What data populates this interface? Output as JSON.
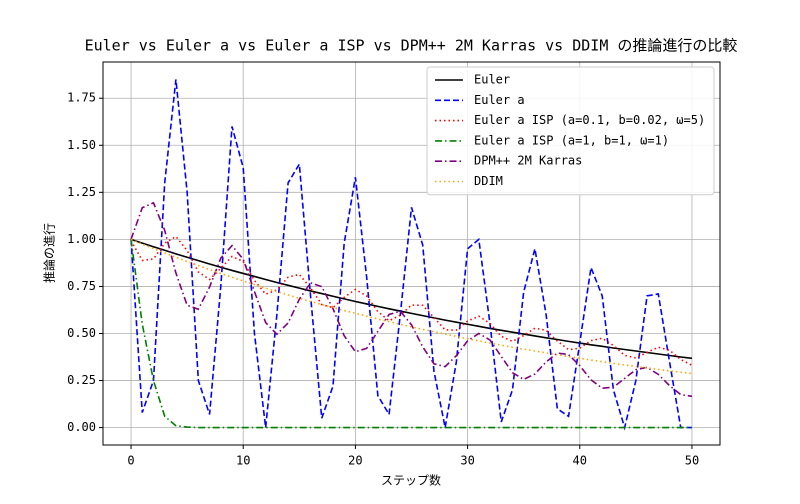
{
  "chart_data": {
    "type": "line",
    "title": "Euler vs Euler a vs Euler a ISP vs DPM++ 2M Karras vs DDIM の推論進行の比較",
    "x_label": "ステップ数",
    "y_label": "推論の進行",
    "x": [
      0,
      1,
      2,
      3,
      4,
      5,
      6,
      7,
      8,
      9,
      10,
      11,
      12,
      13,
      14,
      15,
      16,
      17,
      18,
      19,
      20,
      21,
      22,
      23,
      24,
      25,
      26,
      27,
      28,
      29,
      30,
      31,
      32,
      33,
      34,
      35,
      36,
      37,
      38,
      39,
      40,
      41,
      42,
      43,
      44,
      45,
      46,
      47,
      48,
      49,
      50
    ],
    "series": [
      {
        "name": "Euler",
        "color": "#000000",
        "linestyle": "solid",
        "values": [
          1.0,
          0.98,
          0.961,
          0.942,
          0.923,
          0.905,
          0.887,
          0.869,
          0.852,
          0.835,
          0.819,
          0.803,
          0.787,
          0.771,
          0.756,
          0.741,
          0.726,
          0.712,
          0.698,
          0.684,
          0.67,
          0.657,
          0.644,
          0.631,
          0.619,
          0.607,
          0.595,
          0.583,
          0.571,
          0.56,
          0.549,
          0.538,
          0.527,
          0.517,
          0.507,
          0.497,
          0.487,
          0.477,
          0.468,
          0.458,
          0.449,
          0.44,
          0.432,
          0.423,
          0.415,
          0.407,
          0.399,
          0.391,
          0.383,
          0.375,
          0.368
        ]
      },
      {
        "name": "Euler a",
        "color": "#0000ff",
        "linestyle": "dashed",
        "values": [
          1.0,
          0.08,
          0.25,
          1.3,
          1.85,
          1.25,
          0.25,
          0.07,
          0.75,
          1.6,
          1.38,
          0.5,
          0.0,
          0.6,
          1.3,
          1.4,
          0.7,
          0.05,
          0.22,
          0.98,
          1.33,
          0.8,
          0.17,
          0.07,
          0.6,
          1.17,
          0.97,
          0.3,
          0.0,
          0.35,
          0.95,
          1.0,
          0.55,
          0.03,
          0.2,
          0.72,
          0.95,
          0.6,
          0.1,
          0.06,
          0.45,
          0.85,
          0.7,
          0.2,
          0.0,
          0.25,
          0.7,
          0.71,
          0.35,
          0.0,
          0.0
        ]
      },
      {
        "name": "Euler a ISP (a=0.1, b=0.02, ω=5)",
        "color": "#ff0000",
        "linestyle": "dotted",
        "values": [
          0.993,
          0.888,
          0.896,
          0.98,
          1.015,
          0.941,
          0.827,
          0.787,
          0.846,
          0.909,
          0.883,
          0.782,
          0.709,
          0.731,
          0.799,
          0.814,
          0.742,
          0.654,
          0.637,
          0.692,
          0.734,
          0.7,
          0.616,
          0.568,
          0.597,
          0.651,
          0.65,
          0.585,
          0.519,
          0.518,
          0.566,
          0.592,
          0.553,
          0.485,
          0.458,
          0.489,
          0.528,
          0.517,
          0.46,
          0.414,
          0.422,
          0.462,
          0.475,
          0.436,
          0.384,
          0.37,
          0.4,
          0.427,
          0.411,
          0.362,
          0.331
        ]
      },
      {
        "name": "Euler a ISP (a=1, b=1, ω=1)",
        "color": "#008000",
        "linestyle": "dashdot",
        "values": [
          1.0,
          0.55,
          0.25,
          0.06,
          0.01,
          0.003,
          0.0,
          0.0,
          0.0,
          0.0,
          0.0,
          0.0,
          0.0,
          0.0,
          0.0,
          0.0,
          0.0,
          0.0,
          0.0,
          0.0,
          0.0,
          0.0,
          0.0,
          0.0,
          0.0,
          0.0,
          0.0,
          0.0,
          0.0,
          0.0,
          0.0,
          0.0,
          0.0,
          0.0,
          0.0,
          0.0,
          0.0,
          0.0,
          0.0,
          0.0,
          0.0,
          0.0,
          0.0,
          0.0,
          0.0,
          0.0,
          0.0,
          0.0,
          0.0,
          0.0,
          0.0
        ]
      },
      {
        "name": "DPM++ 2M Karras",
        "color": "#800080",
        "linestyle": "dashdot",
        "values": [
          1.0,
          1.168,
          1.194,
          1.048,
          0.821,
          0.65,
          0.629,
          0.747,
          0.9,
          0.967,
          0.894,
          0.723,
          0.558,
          0.496,
          0.556,
          0.682,
          0.769,
          0.749,
          0.632,
          0.488,
          0.403,
          0.421,
          0.511,
          0.601,
          0.618,
          0.546,
          0.429,
          0.339,
          0.324,
          0.382,
          0.461,
          0.5,
          0.465,
          0.378,
          0.292,
          0.256,
          0.285,
          0.349,
          0.396,
          0.388,
          0.329,
          0.254,
          0.209,
          0.215,
          0.261,
          0.308,
          0.32,
          0.283,
          0.223,
          0.175,
          0.166
        ]
      },
      {
        "name": "DDIM",
        "color": "#ffa500",
        "linestyle": "dotted",
        "values": [
          1.0,
          0.975,
          0.951,
          0.928,
          0.905,
          0.882,
          0.861,
          0.839,
          0.819,
          0.799,
          0.779,
          0.76,
          0.741,
          0.723,
          0.705,
          0.687,
          0.67,
          0.654,
          0.638,
          0.622,
          0.607,
          0.592,
          0.577,
          0.563,
          0.549,
          0.535,
          0.522,
          0.509,
          0.497,
          0.484,
          0.472,
          0.461,
          0.449,
          0.438,
          0.427,
          0.417,
          0.407,
          0.397,
          0.387,
          0.377,
          0.368,
          0.359,
          0.35,
          0.341,
          0.333,
          0.325,
          0.317,
          0.309,
          0.301,
          0.294,
          0.287
        ]
      }
    ],
    "xlim": [
      -2.5,
      52.5
    ],
    "ylim": [
      -0.0925,
      1.9425
    ],
    "xticks": [
      0,
      10,
      20,
      30,
      40,
      50
    ],
    "yticks": [
      {
        "value": 0,
        "label": "0.00"
      },
      {
        "value": 0.25,
        "label": "0.25"
      },
      {
        "value": 0.5,
        "label": "0.50"
      },
      {
        "value": 0.75,
        "label": "0.75"
      },
      {
        "value": 1,
        "label": "1.00"
      },
      {
        "value": 1.25,
        "label": "1.25"
      },
      {
        "value": 1.5,
        "label": "1.50"
      },
      {
        "value": 1.75,
        "label": "1.75"
      }
    ],
    "grid": true,
    "legend": "upper right"
  }
}
